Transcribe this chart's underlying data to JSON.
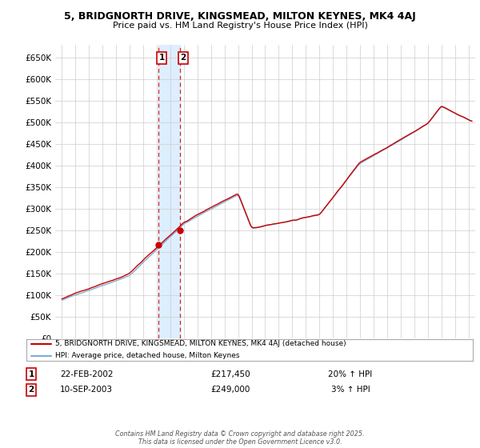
{
  "title": "5, BRIDGNORTH DRIVE, KINGSMEAD, MILTON KEYNES, MK4 4AJ",
  "subtitle": "Price paid vs. HM Land Registry's House Price Index (HPI)",
  "legend_line1": "5, BRIDGNORTH DRIVE, KINGSMEAD, MILTON KEYNES, MK4 4AJ (detached house)",
  "legend_line2": "HPI: Average price, detached house, Milton Keynes",
  "table_row1": [
    "1",
    "22-FEB-2002",
    "£217,450",
    "20% ↑ HPI"
  ],
  "table_row2": [
    "2",
    "10-SEP-2003",
    "£249,000",
    "3% ↑ HPI"
  ],
  "footer": "Contains HM Land Registry data © Crown copyright and database right 2025.\nThis data is licensed under the Open Government Licence v3.0.",
  "red_color": "#cc0000",
  "blue_color": "#7bafd4",
  "shade_color": "#ddeeff",
  "marker1_date": 2002.12,
  "marker2_date": 2003.7,
  "marker1_value": 217450,
  "marker2_value": 249000,
  "ylim": [
    0,
    680000
  ],
  "xlim_start": 1994.5,
  "xlim_end": 2025.5,
  "background_color": "#ffffff",
  "grid_color": "#cccccc"
}
